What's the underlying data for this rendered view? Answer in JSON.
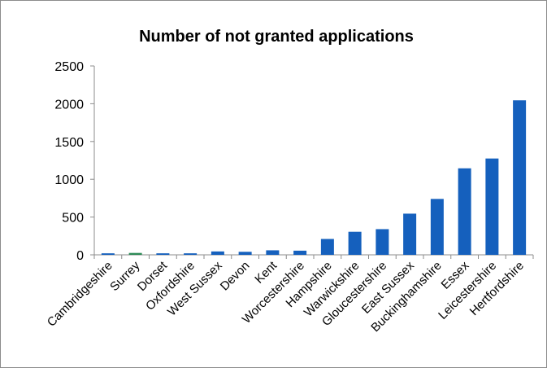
{
  "chart_data": {
    "type": "bar",
    "title": "Number of not granted applications",
    "xlabel": "",
    "ylabel": "",
    "ylim": [
      0,
      2500
    ],
    "yticks": [
      0,
      500,
      1000,
      1500,
      2000,
      2500
    ],
    "grid": false,
    "legend": "none",
    "categories": [
      "Cambridgeshire",
      "Surrey",
      "Dorset",
      "Oxfordshire",
      "West Sussex",
      "Devon",
      "Kent",
      "Worcestershire",
      "Hampshire",
      "Warwickshire",
      "Gloucestershire",
      "East Sussex",
      "Buckinghamshire",
      "Essex",
      "Leicestershire",
      "Hertfordshire"
    ],
    "values": [
      20,
      25,
      20,
      20,
      45,
      40,
      60,
      55,
      210,
      305,
      340,
      545,
      740,
      1145,
      1275,
      2045
    ],
    "colors": {
      "bar": "#1560bd",
      "bar_alt": "#2e8b57",
      "axis": "#8c8c8c"
    },
    "bar_color_overrides": {
      "Surrey": "#2e8b57"
    }
  }
}
